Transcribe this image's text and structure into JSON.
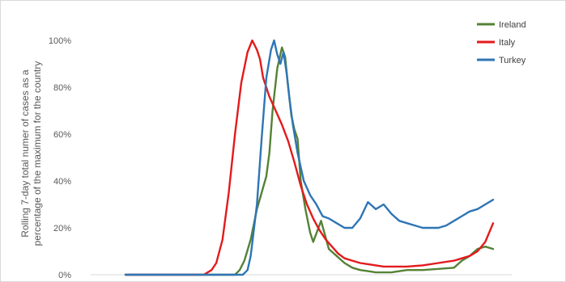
{
  "chart_data": {
    "type": "line",
    "title": "",
    "xlabel": "",
    "ylabel_lines": [
      "Rolling 7-day total numer of cases as a",
      "percentage of the maximum for the country"
    ],
    "ylim": [
      0,
      100
    ],
    "yticks": [
      "0%",
      "20%",
      "40%",
      "60%",
      "80%",
      "100%"
    ],
    "ytick_values": [
      0,
      20,
      40,
      60,
      80,
      100
    ],
    "xlim": [
      0,
      235
    ],
    "grid": false,
    "legend_position": "top-right",
    "series": [
      {
        "name": "Ireland",
        "color": "#548235",
        "x": [
          0,
          60,
          65,
          70,
          73,
          76,
          80,
          84,
          87,
          90,
          92,
          94,
          97,
          100,
          102,
          104,
          106,
          108,
          110,
          112,
          115,
          118,
          120,
          125,
          130,
          135,
          140,
          145,
          150,
          155,
          160,
          170,
          180,
          190,
          200,
          210,
          215,
          220,
          225,
          230,
          235
        ],
        "values": [
          0,
          0,
          0,
          0,
          2,
          6,
          15,
          28,
          35,
          42,
          52,
          70,
          88,
          97,
          93,
          80,
          68,
          62,
          58,
          40,
          28,
          18,
          14,
          23,
          11,
          8,
          5,
          3,
          2,
          1.5,
          1,
          1,
          2,
          2,
          2.5,
          3,
          6,
          8,
          11,
          12,
          11
        ]
      },
      {
        "name": "Italy",
        "color": "#e31a1c",
        "x": [
          0,
          50,
          55,
          58,
          62,
          66,
          70,
          74,
          78,
          81,
          84,
          86,
          88,
          92,
          96,
          100,
          104,
          108,
          112,
          116,
          120,
          124,
          128,
          132,
          136,
          140,
          145,
          150,
          155,
          160,
          165,
          170,
          180,
          190,
          200,
          210,
          215,
          220,
          225,
          230,
          235
        ],
        "values": [
          0,
          0,
          2,
          5,
          15,
          35,
          60,
          82,
          95,
          100,
          96,
          92,
          84,
          76,
          70,
          64,
          57,
          48,
          38,
          30,
          24,
          19,
          15,
          12,
          9,
          7,
          6,
          5,
          4.5,
          4,
          3.5,
          3.5,
          3.5,
          4,
          5,
          6,
          7,
          8,
          10,
          14,
          22
        ]
      },
      {
        "name": "Turkey",
        "color": "#2e75b6",
        "x": [
          0,
          75,
          78,
          80,
          84,
          87,
          90,
          93,
          95,
          97,
          99,
          101,
          103,
          105,
          107,
          110,
          114,
          118,
          122,
          126,
          130,
          135,
          140,
          145,
          150,
          155,
          160,
          165,
          170,
          175,
          180,
          185,
          190,
          195,
          200,
          205,
          210,
          215,
          220,
          225,
          230,
          235
        ],
        "values": [
          0,
          0,
          2,
          8,
          30,
          58,
          84,
          96,
          100,
          94,
          90,
          95,
          86,
          74,
          64,
          52,
          40,
          34,
          30,
          25,
          24,
          22,
          20,
          20,
          24,
          31,
          28,
          30,
          26,
          23,
          22,
          21,
          20,
          20,
          20,
          21,
          23,
          25,
          27,
          28,
          30,
          32
        ]
      }
    ]
  }
}
